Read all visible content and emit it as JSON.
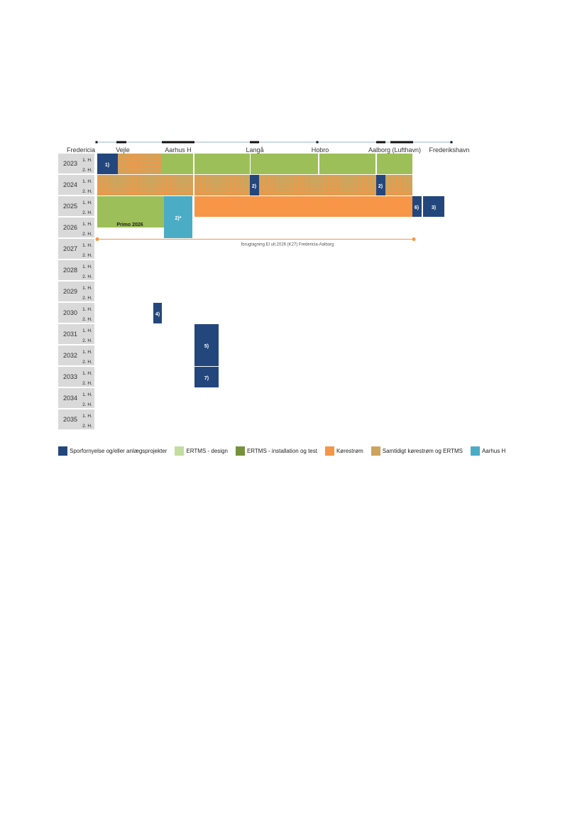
{
  "chart_data": {
    "type": "gantt",
    "stations": [
      {
        "name": "Fredericia"
      },
      {
        "name": "Vejle"
      },
      {
        "name": "Aarhus H"
      },
      {
        "name": "Langå"
      },
      {
        "name": "Hobro"
      },
      {
        "name": "Aalborg (Lufthavn)"
      },
      {
        "name": "Frederikshavn"
      }
    ],
    "years": [
      "2023",
      "2024",
      "2025",
      "2026",
      "2027",
      "2028",
      "2029",
      "2030",
      "2031",
      "2032",
      "2033",
      "2034",
      "2035"
    ],
    "half_labels": [
      "1. H.",
      "2. H."
    ],
    "colors": {
      "track_renewal": "#23477c",
      "ertms_design": "#c5dca0",
      "ertms_install": "#9dbf59",
      "traction": "#f79646",
      "simultaneous": "#cda45c",
      "aarhus_h": "#4bacc6",
      "grid_orange": "#f79646",
      "year_label_bg": "#d9d9d9",
      "legend_install": "#76923c"
    },
    "annotations": [
      {
        "label": "1)"
      },
      {
        "label": "2)"
      },
      {
        "label": "2)"
      },
      {
        "label": "2)*"
      },
      {
        "label": "6)"
      },
      {
        "label": "3)"
      },
      {
        "label": "4)"
      },
      {
        "label": "5)"
      },
      {
        "label": "7)"
      },
      {
        "label": "Primo 2026"
      }
    ],
    "commissioning_text": "Ibrugtagning El ult.2026 (K27) Fredericia-Aalborg",
    "legend": [
      {
        "label": "Sporfornyelse og/eller anlægsprojekter",
        "color_key": "track_renewal"
      },
      {
        "label": "ERTMS - design",
        "color_key": "ertms_design"
      },
      {
        "label": "ERTMS - installation og test",
        "color_key": "legend_install"
      },
      {
        "label": "Kørestrøm",
        "color_key": "traction"
      },
      {
        "label": "Samtidigt kørestrøm og ERTMS",
        "color_key": "simultaneous"
      },
      {
        "label": "Aarhus H",
        "color_key": "aarhus_h"
      }
    ]
  }
}
